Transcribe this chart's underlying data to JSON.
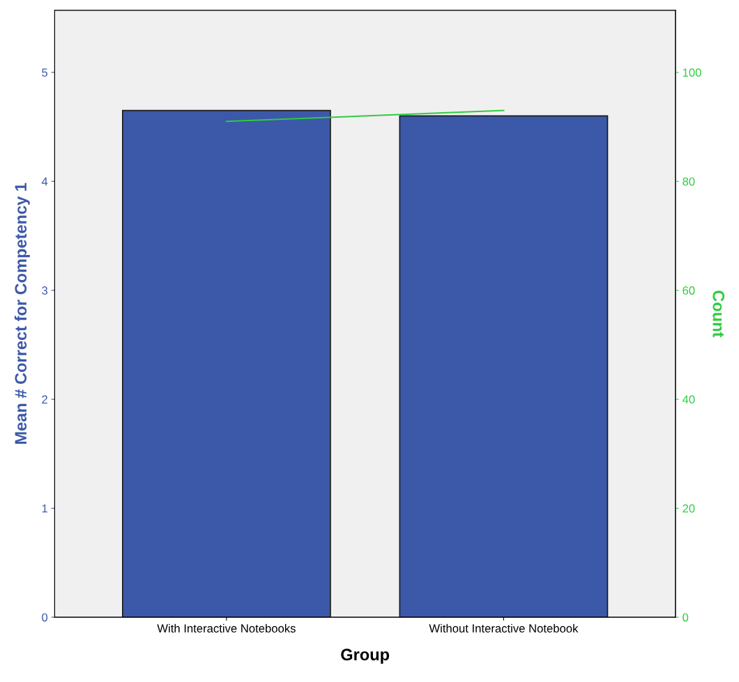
{
  "chart_data": {
    "type": "bar",
    "xlabel": "Group",
    "ylabel": "Mean # Correct for Competency 1",
    "y2label": "Count",
    "categories": [
      "With Interactive Notebooks",
      "Without Interactive Notebook"
    ],
    "series": [
      {
        "color": "#3c58a8",
        "values": [
          4.65,
          4.6
        ]
      },
      {
        "type": "line",
        "axis": "y2",
        "color": "#2ecc40",
        "values": [
          91,
          93
        ]
      }
    ],
    "ylim": [
      0,
      5.57
    ],
    "yticks": [
      0,
      1,
      2,
      3,
      4,
      5
    ],
    "y2lim": [
      0,
      111.4
    ],
    "y2ticks": [
      0,
      20,
      40,
      60,
      80,
      100
    ],
    "grid": false,
    "legend": false
  }
}
